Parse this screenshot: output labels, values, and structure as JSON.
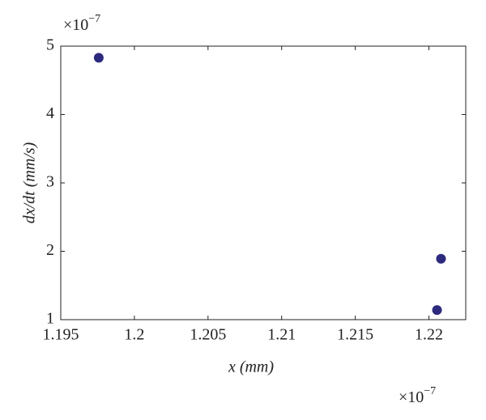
{
  "chart_data": {
    "type": "scatter",
    "x_label": "x (mm)",
    "y_label": "dx/dt (mm/s)",
    "x_multiplier": "×10",
    "x_multiplier_power": "−7",
    "y_multiplier": "×10",
    "y_multiplier_power": "−7",
    "series": [
      {
        "color": "#2d2a7e",
        "x": [
          1.19758,
          1.22082,
          1.22055
        ],
        "values": [
          4.83,
          1.89,
          1.14
        ]
      }
    ],
    "xlim": [
      1.195,
      1.2225
    ],
    "xticks": [
      1.195,
      1.2,
      1.205,
      1.21,
      1.215,
      1.22
    ],
    "ylim": [
      1,
      5
    ],
    "yticks": [
      1,
      2,
      3,
      4,
      5
    ]
  }
}
